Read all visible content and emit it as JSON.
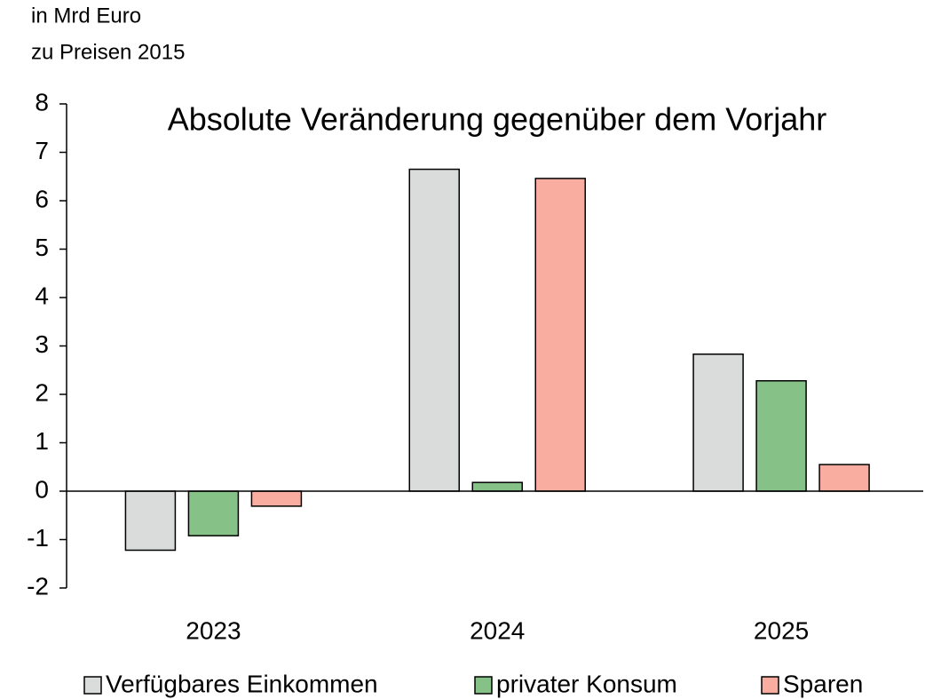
{
  "chart_data": {
    "type": "bar",
    "title": "Absolute Veränderung gegenüber dem Vorjahr",
    "y_label": [
      "in Mrd Euro",
      "zu Preisen 2015"
    ],
    "categories": [
      "2023",
      "2024",
      "2025"
    ],
    "series": [
      {
        "name": "Verfügbares Einkommen",
        "color": "#d9dcdb",
        "values": [
          -1.22,
          6.65,
          2.83
        ]
      },
      {
        "name": "privater Konsum",
        "color": "#86c287",
        "values": [
          -0.92,
          0.18,
          2.28
        ]
      },
      {
        "name": "Sparen",
        "color": "#f8ada0",
        "values": [
          -0.31,
          6.46,
          0.55
        ]
      }
    ],
    "ylim": [
      -2,
      8
    ],
    "yticks": [
      -2,
      -1,
      0,
      1,
      2,
      3,
      4,
      5,
      6,
      7,
      8
    ],
    "legend": "bottom"
  }
}
